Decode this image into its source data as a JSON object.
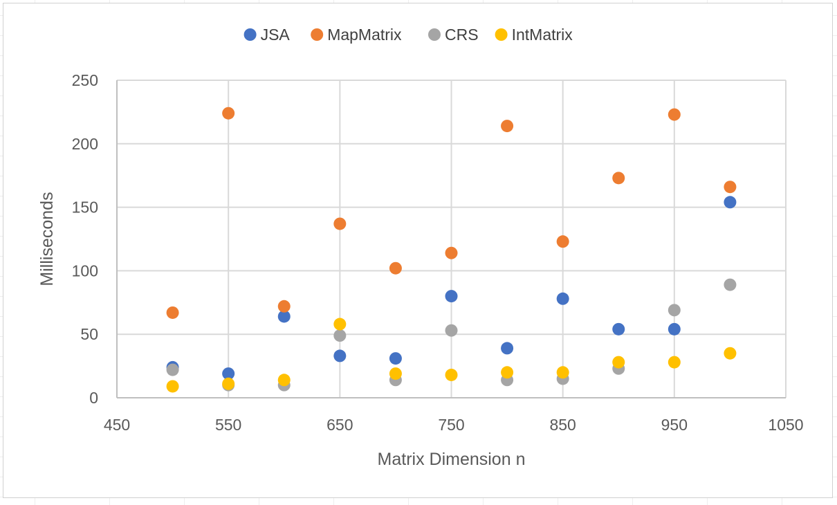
{
  "chart_data": {
    "type": "scatter",
    "title": "",
    "xlabel": "Matrix Dimension n",
    "ylabel": "Milliseconds",
    "xlim": [
      450,
      1050
    ],
    "ylim": [
      0,
      250
    ],
    "xticks": [
      450,
      550,
      650,
      750,
      850,
      950,
      1050
    ],
    "yticks": [
      0,
      50,
      100,
      150,
      200,
      250
    ],
    "grid": true,
    "legend_position": "top",
    "x": [
      500,
      550,
      600,
      650,
      700,
      750,
      800,
      850,
      900,
      950,
      1000
    ],
    "series": [
      {
        "name": "JSA",
        "color": "#4472C4",
        "values": [
          24,
          19,
          64,
          33,
          31,
          80,
          39,
          78,
          54,
          54,
          154
        ]
      },
      {
        "name": "MapMatrix",
        "color": "#ED7D31",
        "values": [
          67,
          224,
          72,
          137,
          102,
          114,
          214,
          123,
          173,
          223,
          166
        ]
      },
      {
        "name": "CRS",
        "color": "#A5A5A5",
        "values": [
          22,
          10,
          10,
          49,
          14,
          53,
          14,
          15,
          23,
          69,
          89
        ]
      },
      {
        "name": "IntMatrix",
        "color": "#FFC000",
        "values": [
          9,
          11,
          14,
          58,
          19,
          18,
          20,
          20,
          28,
          28,
          35
        ]
      }
    ]
  }
}
